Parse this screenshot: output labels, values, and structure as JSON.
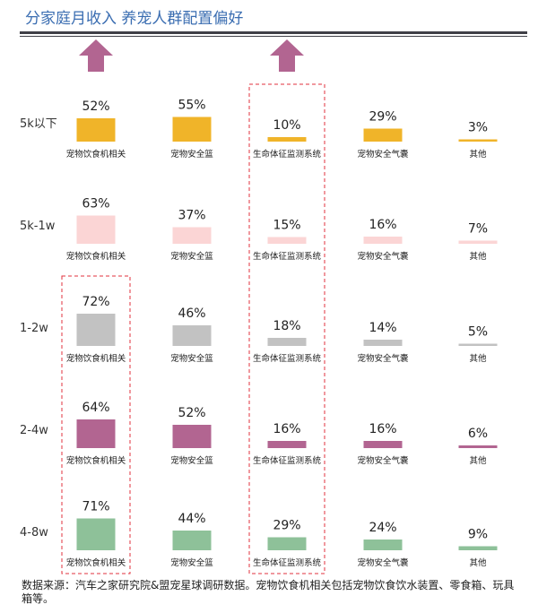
{
  "title": "分家庭月收入 养宠人群配置偏好",
  "source": "数据来源：汽车之家研究院&盟宠星球调研数据。宠物饮食机相关包括宠物饮食饮水装置、零食箱、玩具箱等。",
  "chart_data": {
    "type": "bar",
    "title": "分家庭月收入 养宠人群配置偏好",
    "rows": [
      "5k以下",
      "5k-1w",
      "1-2w",
      "2-4w",
      "4-8w"
    ],
    "categories": [
      "宠物饮食机相关",
      "宠物安全篮",
      "生命体征监测系统",
      "宠物安全气囊",
      "其他"
    ],
    "series": [
      {
        "name": "5k以下",
        "values": [
          52,
          55,
          10,
          29,
          3
        ],
        "color": "#f0b429"
      },
      {
        "name": "5k-1w",
        "values": [
          63,
          37,
          15,
          16,
          7
        ],
        "color": "#fbd5d5"
      },
      {
        "name": "1-2w",
        "values": [
          72,
          46,
          18,
          14,
          5
        ],
        "color": "#c2c2c2"
      },
      {
        "name": "2-4w",
        "values": [
          64,
          52,
          16,
          16,
          6
        ],
        "color": "#b26591"
      },
      {
        "name": "4-8w",
        "values": [
          71,
          44,
          29,
          24,
          9
        ],
        "color": "#8ec199"
      }
    ],
    "value_suffix": "%",
    "highlight": {
      "columns": [
        2
      ],
      "cells": [
        [
          2,
          0
        ],
        [
          3,
          0
        ],
        [
          4,
          0
        ]
      ],
      "color": "#e0323c"
    },
    "arrows": {
      "columns": [
        0,
        2
      ],
      "color": "#b26591"
    },
    "grid": false,
    "legend": "none"
  }
}
